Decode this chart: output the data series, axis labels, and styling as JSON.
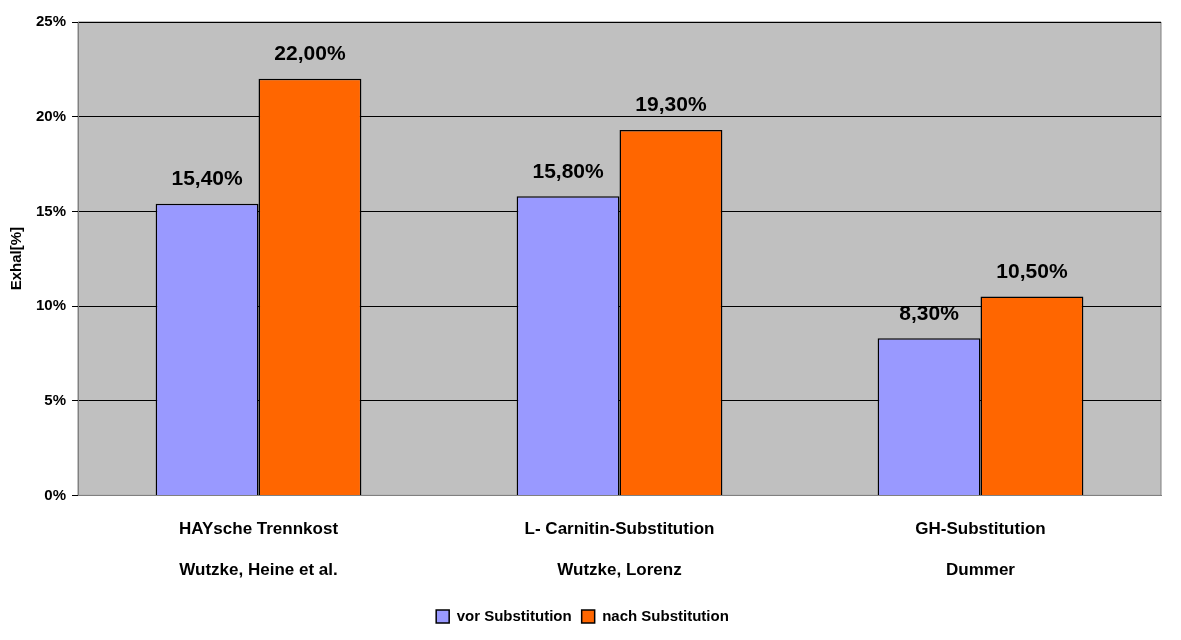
{
  "chart_data": {
    "type": "bar",
    "ylabel": "Exhal[%]",
    "categories": [
      "HAYsche Trennkost\nWutzke, Heine et al.",
      "L- Carnitin-Substitution\nWutzke, Lorenz",
      "GH-Substitution\nDummer"
    ],
    "series": [
      {
        "name": "vor Substitution",
        "color": "#9999ff",
        "values": [
          15.4,
          15.8,
          8.3
        ],
        "value_labels": [
          "15,40%",
          "15,80%",
          "8,30%"
        ]
      },
      {
        "name": "nach Substitution",
        "color": "#ff6600",
        "values": [
          22.0,
          19.3,
          10.5
        ],
        "value_labels": [
          "22,00%",
          "19,30%",
          "10,50%"
        ]
      }
    ],
    "ylim": [
      0,
      25
    ],
    "yticks": [
      {
        "value": 0,
        "label": "0%"
      },
      {
        "value": 5,
        "label": "5%"
      },
      {
        "value": 10,
        "label": "10%"
      },
      {
        "value": 15,
        "label": "15%"
      },
      {
        "value": 20,
        "label": "20%"
      },
      {
        "value": 25,
        "label": "25%"
      }
    ],
    "grid": "y",
    "legend": "bottom"
  }
}
